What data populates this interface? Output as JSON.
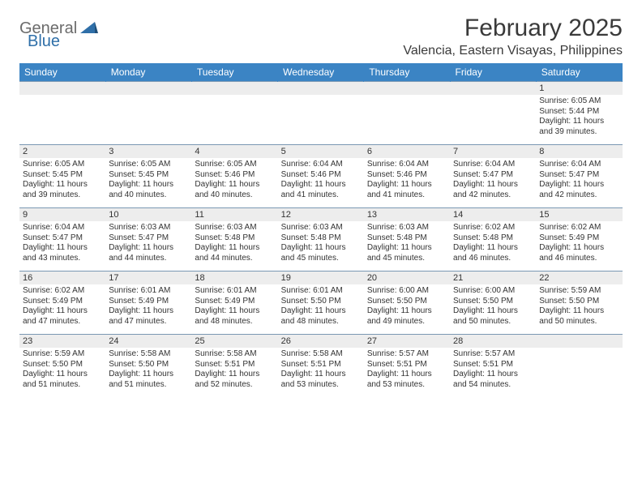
{
  "logo": {
    "text1": "General",
    "text2": "Blue"
  },
  "title": "February 2025",
  "location": "Valencia, Eastern Visayas, Philippines",
  "colors": {
    "header_bg": "#3b84c4",
    "header_text": "#ffffff",
    "daynum_bg": "#ededed",
    "row_border": "#7a98b3",
    "logo_gray": "#6b6b6b",
    "logo_blue": "#2f6fa8",
    "text": "#333333"
  },
  "day_headers": [
    "Sunday",
    "Monday",
    "Tuesday",
    "Wednesday",
    "Thursday",
    "Friday",
    "Saturday"
  ],
  "weeks": [
    [
      {
        "n": "",
        "sr": "",
        "ss": "",
        "dl": ""
      },
      {
        "n": "",
        "sr": "",
        "ss": "",
        "dl": ""
      },
      {
        "n": "",
        "sr": "",
        "ss": "",
        "dl": ""
      },
      {
        "n": "",
        "sr": "",
        "ss": "",
        "dl": ""
      },
      {
        "n": "",
        "sr": "",
        "ss": "",
        "dl": ""
      },
      {
        "n": "",
        "sr": "",
        "ss": "",
        "dl": ""
      },
      {
        "n": "1",
        "sr": "Sunrise: 6:05 AM",
        "ss": "Sunset: 5:44 PM",
        "dl": "Daylight: 11 hours and 39 minutes."
      }
    ],
    [
      {
        "n": "2",
        "sr": "Sunrise: 6:05 AM",
        "ss": "Sunset: 5:45 PM",
        "dl": "Daylight: 11 hours and 39 minutes."
      },
      {
        "n": "3",
        "sr": "Sunrise: 6:05 AM",
        "ss": "Sunset: 5:45 PM",
        "dl": "Daylight: 11 hours and 40 minutes."
      },
      {
        "n": "4",
        "sr": "Sunrise: 6:05 AM",
        "ss": "Sunset: 5:46 PM",
        "dl": "Daylight: 11 hours and 40 minutes."
      },
      {
        "n": "5",
        "sr": "Sunrise: 6:04 AM",
        "ss": "Sunset: 5:46 PM",
        "dl": "Daylight: 11 hours and 41 minutes."
      },
      {
        "n": "6",
        "sr": "Sunrise: 6:04 AM",
        "ss": "Sunset: 5:46 PM",
        "dl": "Daylight: 11 hours and 41 minutes."
      },
      {
        "n": "7",
        "sr": "Sunrise: 6:04 AM",
        "ss": "Sunset: 5:47 PM",
        "dl": "Daylight: 11 hours and 42 minutes."
      },
      {
        "n": "8",
        "sr": "Sunrise: 6:04 AM",
        "ss": "Sunset: 5:47 PM",
        "dl": "Daylight: 11 hours and 42 minutes."
      }
    ],
    [
      {
        "n": "9",
        "sr": "Sunrise: 6:04 AM",
        "ss": "Sunset: 5:47 PM",
        "dl": "Daylight: 11 hours and 43 minutes."
      },
      {
        "n": "10",
        "sr": "Sunrise: 6:03 AM",
        "ss": "Sunset: 5:47 PM",
        "dl": "Daylight: 11 hours and 44 minutes."
      },
      {
        "n": "11",
        "sr": "Sunrise: 6:03 AM",
        "ss": "Sunset: 5:48 PM",
        "dl": "Daylight: 11 hours and 44 minutes."
      },
      {
        "n": "12",
        "sr": "Sunrise: 6:03 AM",
        "ss": "Sunset: 5:48 PM",
        "dl": "Daylight: 11 hours and 45 minutes."
      },
      {
        "n": "13",
        "sr": "Sunrise: 6:03 AM",
        "ss": "Sunset: 5:48 PM",
        "dl": "Daylight: 11 hours and 45 minutes."
      },
      {
        "n": "14",
        "sr": "Sunrise: 6:02 AM",
        "ss": "Sunset: 5:48 PM",
        "dl": "Daylight: 11 hours and 46 minutes."
      },
      {
        "n": "15",
        "sr": "Sunrise: 6:02 AM",
        "ss": "Sunset: 5:49 PM",
        "dl": "Daylight: 11 hours and 46 minutes."
      }
    ],
    [
      {
        "n": "16",
        "sr": "Sunrise: 6:02 AM",
        "ss": "Sunset: 5:49 PM",
        "dl": "Daylight: 11 hours and 47 minutes."
      },
      {
        "n": "17",
        "sr": "Sunrise: 6:01 AM",
        "ss": "Sunset: 5:49 PM",
        "dl": "Daylight: 11 hours and 47 minutes."
      },
      {
        "n": "18",
        "sr": "Sunrise: 6:01 AM",
        "ss": "Sunset: 5:49 PM",
        "dl": "Daylight: 11 hours and 48 minutes."
      },
      {
        "n": "19",
        "sr": "Sunrise: 6:01 AM",
        "ss": "Sunset: 5:50 PM",
        "dl": "Daylight: 11 hours and 48 minutes."
      },
      {
        "n": "20",
        "sr": "Sunrise: 6:00 AM",
        "ss": "Sunset: 5:50 PM",
        "dl": "Daylight: 11 hours and 49 minutes."
      },
      {
        "n": "21",
        "sr": "Sunrise: 6:00 AM",
        "ss": "Sunset: 5:50 PM",
        "dl": "Daylight: 11 hours and 50 minutes."
      },
      {
        "n": "22",
        "sr": "Sunrise: 5:59 AM",
        "ss": "Sunset: 5:50 PM",
        "dl": "Daylight: 11 hours and 50 minutes."
      }
    ],
    [
      {
        "n": "23",
        "sr": "Sunrise: 5:59 AM",
        "ss": "Sunset: 5:50 PM",
        "dl": "Daylight: 11 hours and 51 minutes."
      },
      {
        "n": "24",
        "sr": "Sunrise: 5:58 AM",
        "ss": "Sunset: 5:50 PM",
        "dl": "Daylight: 11 hours and 51 minutes."
      },
      {
        "n": "25",
        "sr": "Sunrise: 5:58 AM",
        "ss": "Sunset: 5:51 PM",
        "dl": "Daylight: 11 hours and 52 minutes."
      },
      {
        "n": "26",
        "sr": "Sunrise: 5:58 AM",
        "ss": "Sunset: 5:51 PM",
        "dl": "Daylight: 11 hours and 53 minutes."
      },
      {
        "n": "27",
        "sr": "Sunrise: 5:57 AM",
        "ss": "Sunset: 5:51 PM",
        "dl": "Daylight: 11 hours and 53 minutes."
      },
      {
        "n": "28",
        "sr": "Sunrise: 5:57 AM",
        "ss": "Sunset: 5:51 PM",
        "dl": "Daylight: 11 hours and 54 minutes."
      },
      {
        "n": "",
        "sr": "",
        "ss": "",
        "dl": ""
      }
    ]
  ]
}
